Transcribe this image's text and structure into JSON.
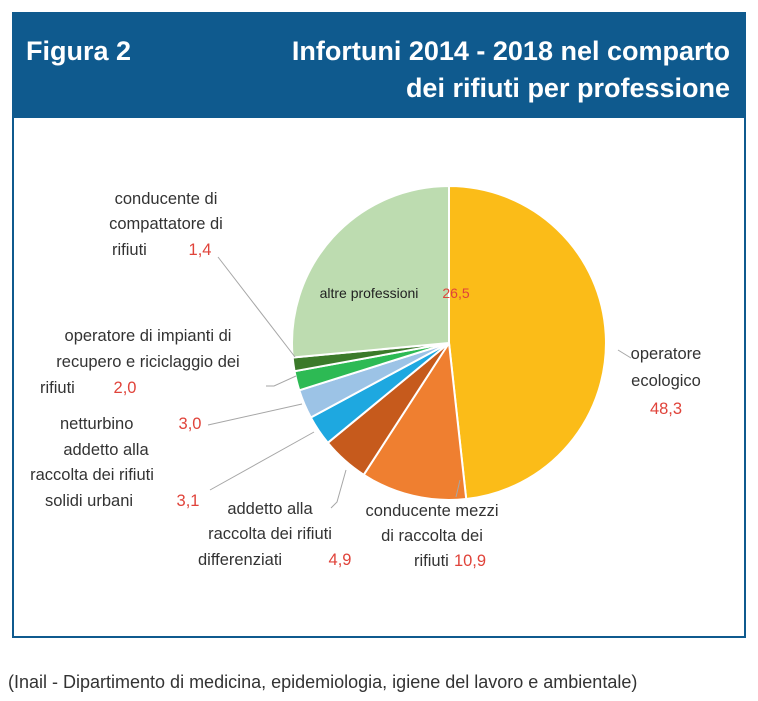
{
  "figure": {
    "label": "Figura 2",
    "title_line1": "Infortuni 2014 - 2018 nel comparto",
    "title_line2": "dei rifiuti per professione",
    "source": "(Inail - Dipartimento di medicina, epidemiologia, igiene del lavoro e ambientale)"
  },
  "colors": {
    "header": "#0f5a8e",
    "value_text": "#e0433a"
  },
  "chart_data": {
    "type": "pie",
    "start_angle_deg": 0,
    "direction": "clockwise",
    "slices": [
      {
        "label_lines": [
          "operatore",
          "ecologico"
        ],
        "value": 48.3,
        "value_text": "48,3",
        "color": "#fbbc18"
      },
      {
        "label_lines": [
          "conducente mezzi",
          "di raccolta dei",
          "rifiuti"
        ],
        "value": 10.9,
        "value_text": "10,9",
        "color": "#ef7f30"
      },
      {
        "label_lines": [
          "addetto alla",
          "raccolta dei rifiuti",
          "differenziati"
        ],
        "value": 4.9,
        "value_text": "4,9",
        "color": "#c65a1c"
      },
      {
        "label_lines": [
          "addetto alla",
          "raccolta dei rifiuti",
          "solidi urbani"
        ],
        "value": 3.1,
        "value_text": "3,1",
        "color": "#1ea8e0"
      },
      {
        "label_lines": [
          "netturbino"
        ],
        "value": 3.0,
        "value_text": "3,0",
        "color": "#9cc3e6"
      },
      {
        "label_lines": [
          "operatore di impianti di",
          "recupero e riciclaggio dei",
          "rifiuti"
        ],
        "value": 2.0,
        "value_text": "2,0",
        "color": "#2dba54"
      },
      {
        "label_lines": [
          "conducente di",
          "compattatore di",
          "rifiuti"
        ],
        "value": 1.4,
        "value_text": "1,4",
        "color": "#3b7a2a"
      },
      {
        "label_lines": [
          "altre professioni"
        ],
        "value": 26.5,
        "value_text": "26,5",
        "color": "#bddcb0"
      }
    ]
  }
}
